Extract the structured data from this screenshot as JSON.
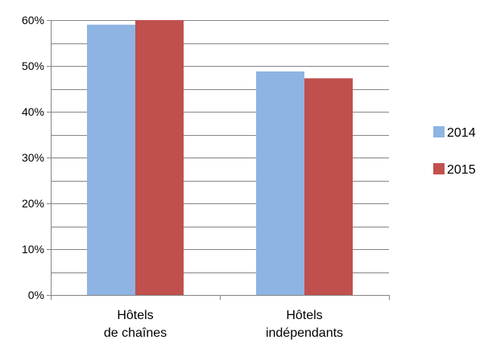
{
  "chart_data": {
    "type": "bar",
    "categories": [
      [
        "Hôtels",
        "de chaînes"
      ],
      [
        "Hôtels",
        "indépendants"
      ]
    ],
    "series": [
      {
        "name": "2014",
        "values": [
          59,
          48.8
        ],
        "color": "#8eb4e3"
      },
      {
        "name": "2015",
        "values": [
          60,
          47.3
        ],
        "color": "#c0504d"
      }
    ],
    "ylim": [
      0,
      60
    ],
    "yticks": [
      {
        "value": 0,
        "label": "0%"
      },
      {
        "value": 10,
        "label": "10%"
      },
      {
        "value": 20,
        "label": "20%"
      },
      {
        "value": 30,
        "label": "30%"
      },
      {
        "value": 40,
        "label": "40%"
      },
      {
        "value": 50,
        "label": "50%"
      },
      {
        "value": 60,
        "label": "60%"
      }
    ],
    "minor_gridlines_step": 5,
    "grid": true,
    "legend_position": "right",
    "title": "",
    "xlabel": "",
    "ylabel": ""
  }
}
